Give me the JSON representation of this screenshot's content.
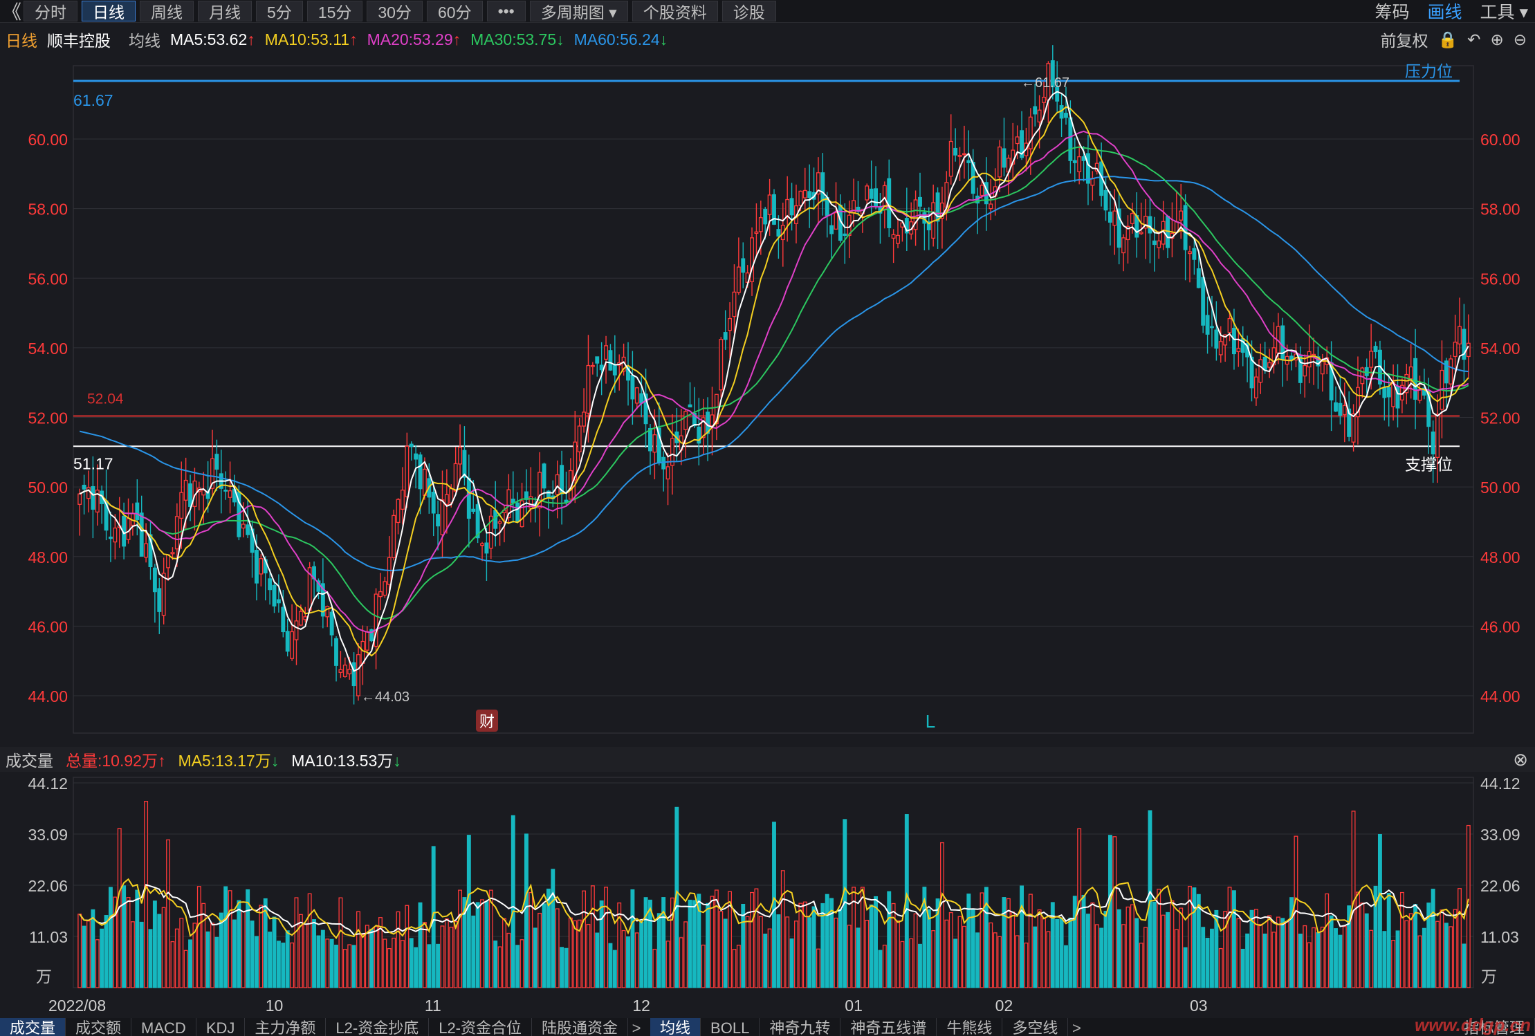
{
  "toolbar": {
    "back": "《",
    "tabs": [
      "分时",
      "日线",
      "周线",
      "月线",
      "5分",
      "15分",
      "30分",
      "60分",
      "•••",
      "多周期图 ▾",
      "个股资料",
      "诊股"
    ],
    "active_index": 1,
    "right": [
      "筹码",
      "画线",
      "工具 ▾"
    ]
  },
  "infobar": {
    "period": "日线",
    "stock_name": "顺丰控股",
    "ma_label": "均线",
    "ma5": "MA5:53.62",
    "ma10": "MA10:53.11",
    "ma20": "MA20:53.29",
    "ma30": "MA30:53.75",
    "ma60": "MA60:56.24",
    "ma5_dir": "↑",
    "ma10_dir": "↑",
    "ma20_dir": "↑",
    "ma30_dir": "↓",
    "ma60_dir": "↓",
    "adjust": "前复权",
    "icons": [
      "lock-icon",
      "undo-icon",
      "zoom-in-icon",
      "zoom-out-icon"
    ]
  },
  "colors": {
    "ma5": "#ffffff",
    "ma10": "#f5d020",
    "ma20": "#e040c8",
    "ma30": "#2cc860",
    "ma60": "#2a95e8",
    "up": "#ff3a3a",
    "down": "#16b8c0",
    "axis_label": "#ff3a3a"
  },
  "chart_data": [
    {
      "type": "candlestick",
      "title": "",
      "y_ticks": [
        "60.00",
        "58.00",
        "56.00",
        "54.00",
        "52.00",
        "50.00",
        "48.00",
        "46.00",
        "44.00"
      ],
      "ylim": [
        43.2,
        62.0
      ],
      "annotations": {
        "resistance_label": "压力位",
        "resistance_value": "61.67",
        "resistance_price": 61.67,
        "support_label": "支撑位",
        "support_value": "51.17",
        "support_price": 51.17,
        "red_line_value": "52.04",
        "red_line_price": 52.04,
        "high_marker": "←61.67",
        "low_marker": "←44.03",
        "finance_badge": "财",
        "l_marker": "L"
      },
      "candles": [],
      "ma5": [],
      "ma10": [],
      "ma20": [],
      "ma30": [],
      "ma60": []
    },
    {
      "type": "bar",
      "title": "成交量",
      "unit": "万",
      "y_ticks": [
        "44.12",
        "33.09",
        "22.06",
        "11.03"
      ],
      "ylim": [
        0,
        44.12
      ],
      "x_tick_labels": [
        "2022/08",
        "10",
        "11",
        "12",
        "01",
        "02",
        "03"
      ],
      "volumes": [],
      "vol_ma5": [],
      "vol_ma10": []
    }
  ],
  "volume_bar": {
    "label": "成交量",
    "total": "总量:10.92万",
    "ma5": "MA5:13.17万",
    "ma10": "MA10:13.53万",
    "total_dir": "↑",
    "ma5_dir": "↓",
    "ma10_dir": "↓"
  },
  "bottom_tabs": {
    "left": [
      "成交量",
      "成交额",
      "MACD",
      "KDJ",
      "主力净额",
      "L2-资金抄底",
      "L2-资金合位",
      "陆股通资金"
    ],
    "left_active": 0,
    "more": ">",
    "right": [
      "均线",
      "BOLL",
      "神奇九转",
      "神奇五线谱",
      "牛熊线",
      "多空线"
    ],
    "right_active": 0,
    "right_more": ">",
    "indicator_mgmt": "指标管理"
  },
  "watermark": "www.ddgp.cn"
}
